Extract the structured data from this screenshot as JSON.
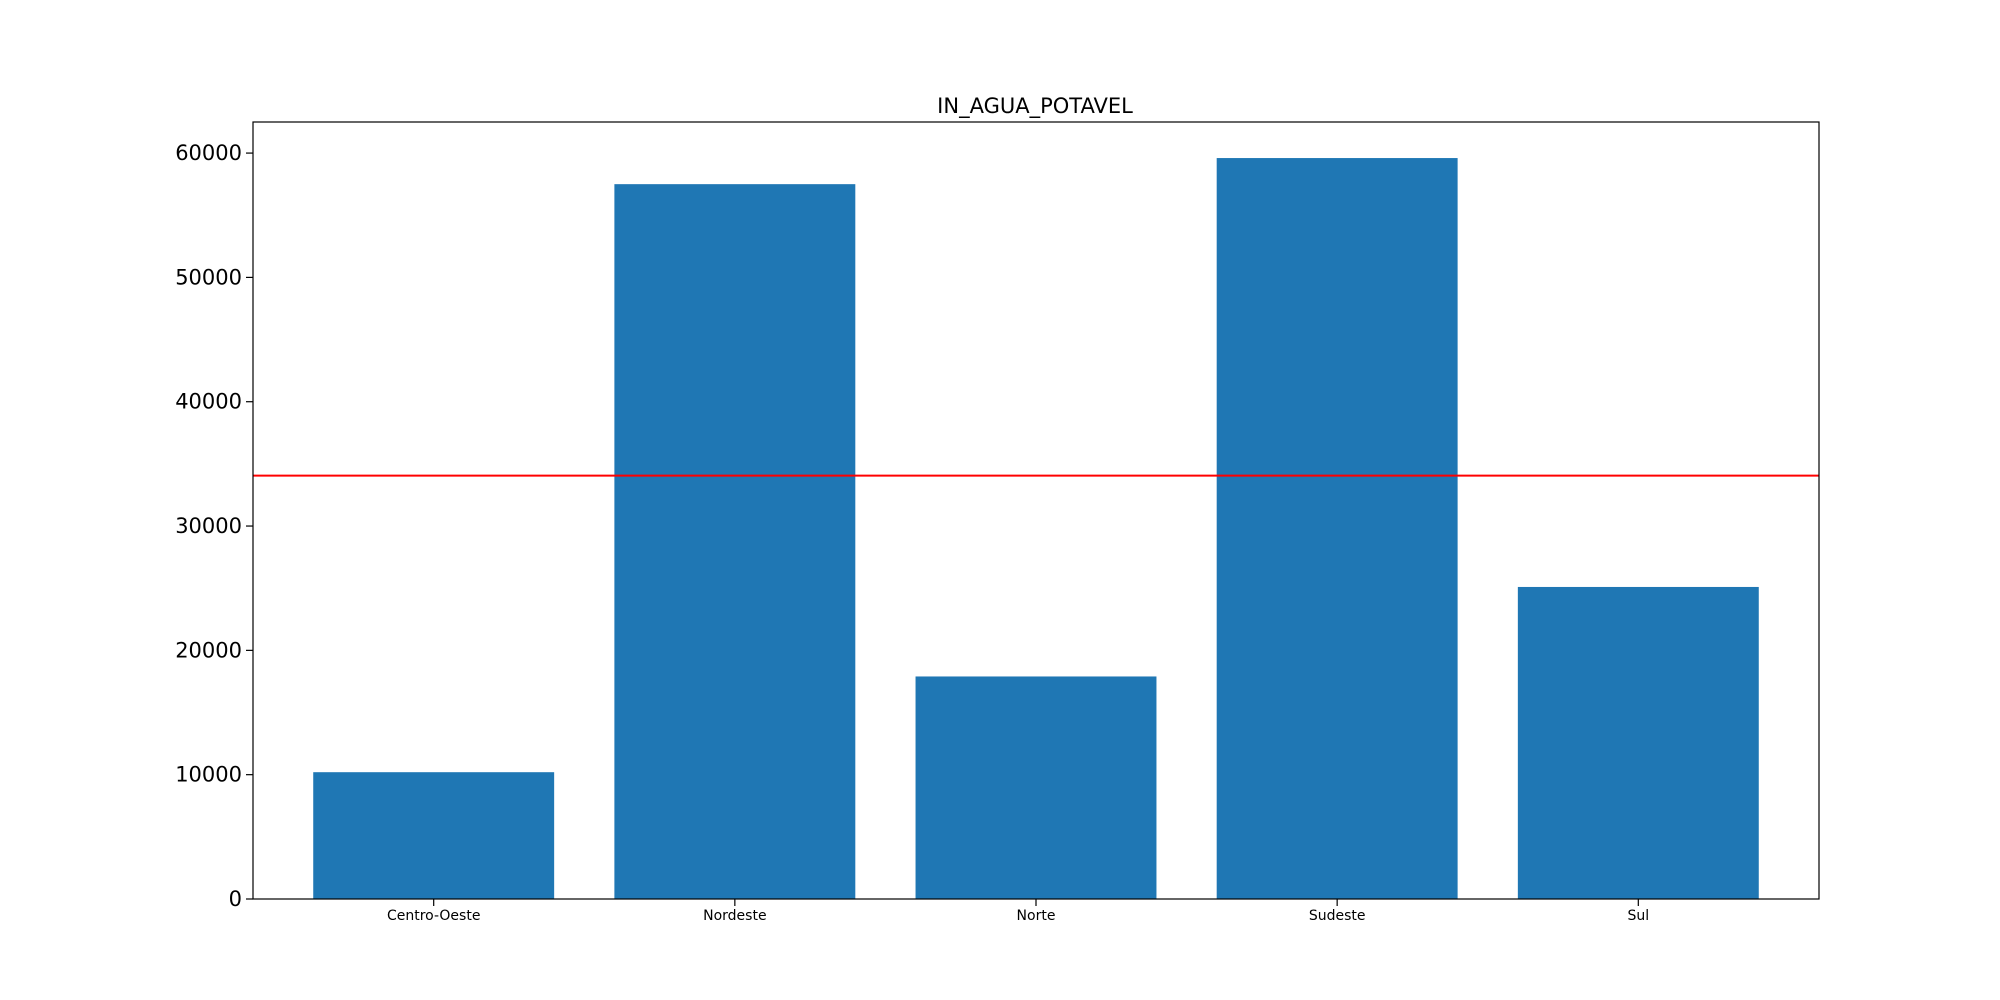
{
  "chart_data": {
    "type": "bar",
    "title": "IN_AGUA_POTAVEL",
    "xlabel": "",
    "ylabel": "",
    "categories": [
      "Centro-Oeste",
      "Nordeste",
      "Norte",
      "Sudeste",
      "Sul"
    ],
    "values": [
      10200,
      57500,
      17900,
      59600,
      25100
    ],
    "ylim": [
      0,
      62500
    ],
    "yticks": [
      0,
      10000,
      20000,
      30000,
      40000,
      50000,
      60000
    ],
    "reference_line": {
      "value": 34060,
      "color": "#ff0000"
    },
    "bar_color": "#1f77b4",
    "grid": false,
    "legend": "none"
  }
}
